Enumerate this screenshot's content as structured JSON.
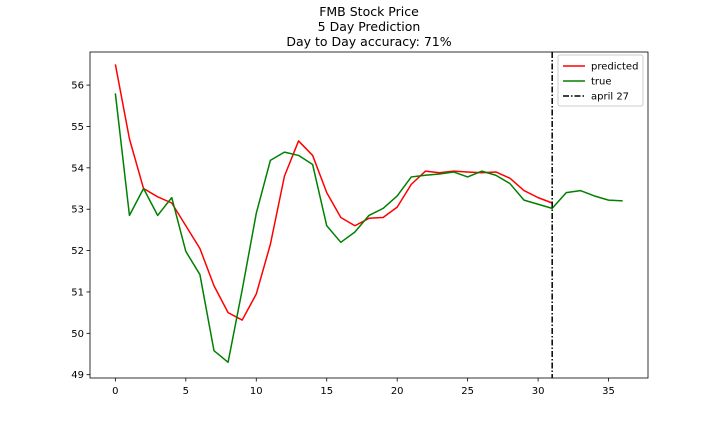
{
  "chart_data": {
    "type": "line",
    "title_lines": [
      "FMB Stock Price",
      "5 Day Prediction",
      "Day to Day accuracy: 71%"
    ],
    "xlim": [
      -1.8,
      37.8
    ],
    "ylim": [
      48.92,
      56.8
    ],
    "x_ticks": [
      0,
      5,
      10,
      15,
      20,
      25,
      30,
      35
    ],
    "y_ticks": [
      49,
      50,
      51,
      52,
      53,
      54,
      55,
      56
    ],
    "grid": false,
    "legend_position": "top-right",
    "series": [
      {
        "name": "predicted",
        "color": "#ff0000",
        "x": [
          0,
          1,
          2,
          3,
          4,
          5,
          6,
          7,
          8,
          9,
          10,
          11,
          12,
          13,
          14,
          15,
          16,
          17,
          18,
          19,
          20,
          21,
          22,
          23,
          24,
          25,
          26,
          27,
          28,
          29,
          30,
          31
        ],
        "values": [
          56.5,
          54.7,
          53.5,
          53.3,
          53.15,
          52.6,
          52.05,
          51.15,
          50.5,
          50.32,
          50.95,
          52.15,
          53.8,
          54.65,
          54.3,
          53.4,
          52.8,
          52.6,
          52.78,
          52.8,
          53.05,
          53.6,
          53.92,
          53.88,
          53.92,
          53.9,
          53.88,
          53.9,
          53.75,
          53.45,
          53.28,
          53.15
        ]
      },
      {
        "name": "true",
        "color": "#008000",
        "x": [
          0,
          1,
          2,
          3,
          4,
          5,
          6,
          7,
          8,
          9,
          10,
          11,
          12,
          13,
          14,
          15,
          16,
          17,
          18,
          19,
          20,
          21,
          22,
          23,
          24,
          25,
          26,
          27,
          28,
          29,
          30,
          31,
          32,
          33,
          34,
          35,
          36
        ],
        "values": [
          55.8,
          52.85,
          53.5,
          52.85,
          53.28,
          51.98,
          51.42,
          49.58,
          49.3,
          51.05,
          52.9,
          54.18,
          54.38,
          54.3,
          54.08,
          52.6,
          52.2,
          52.45,
          52.85,
          53.02,
          53.32,
          53.78,
          53.82,
          53.85,
          53.9,
          53.78,
          53.92,
          53.82,
          53.62,
          53.22,
          53.12,
          53.02,
          53.4,
          53.45,
          53.32,
          53.22,
          53.2
        ]
      }
    ],
    "reference_line": {
      "name": "april 27",
      "x": 31,
      "style": "dash-dot",
      "color": "#000000"
    }
  }
}
